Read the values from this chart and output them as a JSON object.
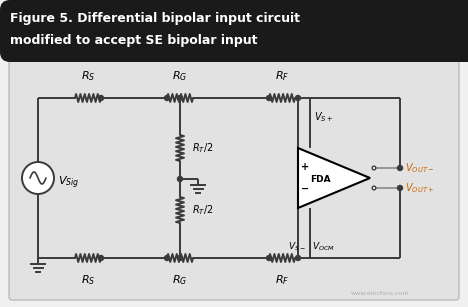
{
  "title_line1": "Figure 5. Differential bipolar input circuit",
  "title_line2": "modified to accept SE bipolar input",
  "title_bg": "#1a1a1a",
  "title_color": "#ffffff",
  "circuit_bg": "#e2e2e2",
  "outer_bg": "#f0f0f0",
  "wire_color": "#3a3a3a",
  "component_color": "#3a3a3a",
  "label_color": "#000000",
  "fda_color": "#000000",
  "annotation_color": "#cc6600",
  "fig_width": 4.68,
  "fig_height": 3.07,
  "dpi": 100
}
